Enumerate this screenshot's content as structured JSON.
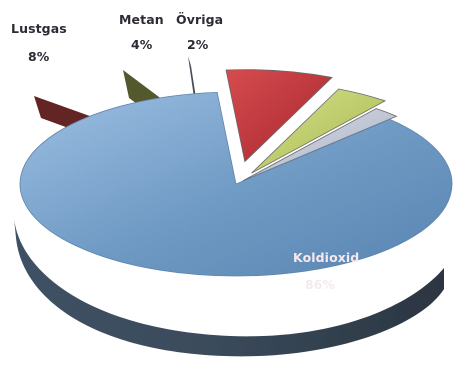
{
  "chart_data": {
    "type": "pie",
    "title": "",
    "slices": [
      {
        "label": "Lustgas",
        "value": 8,
        "display": "8%",
        "color": "#c9363a"
      },
      {
        "label": "Metan",
        "value": 4,
        "display": "4%",
        "color": "#c9d86f"
      },
      {
        "label": "Övriga",
        "value": 2,
        "display": "2%",
        "color": "#bfc6d6"
      },
      {
        "label": "Koldioxid",
        "value": 86,
        "display": "86%",
        "color": "#7aa2c8"
      }
    ],
    "style": "3d exploded pie",
    "legend": "none"
  }
}
